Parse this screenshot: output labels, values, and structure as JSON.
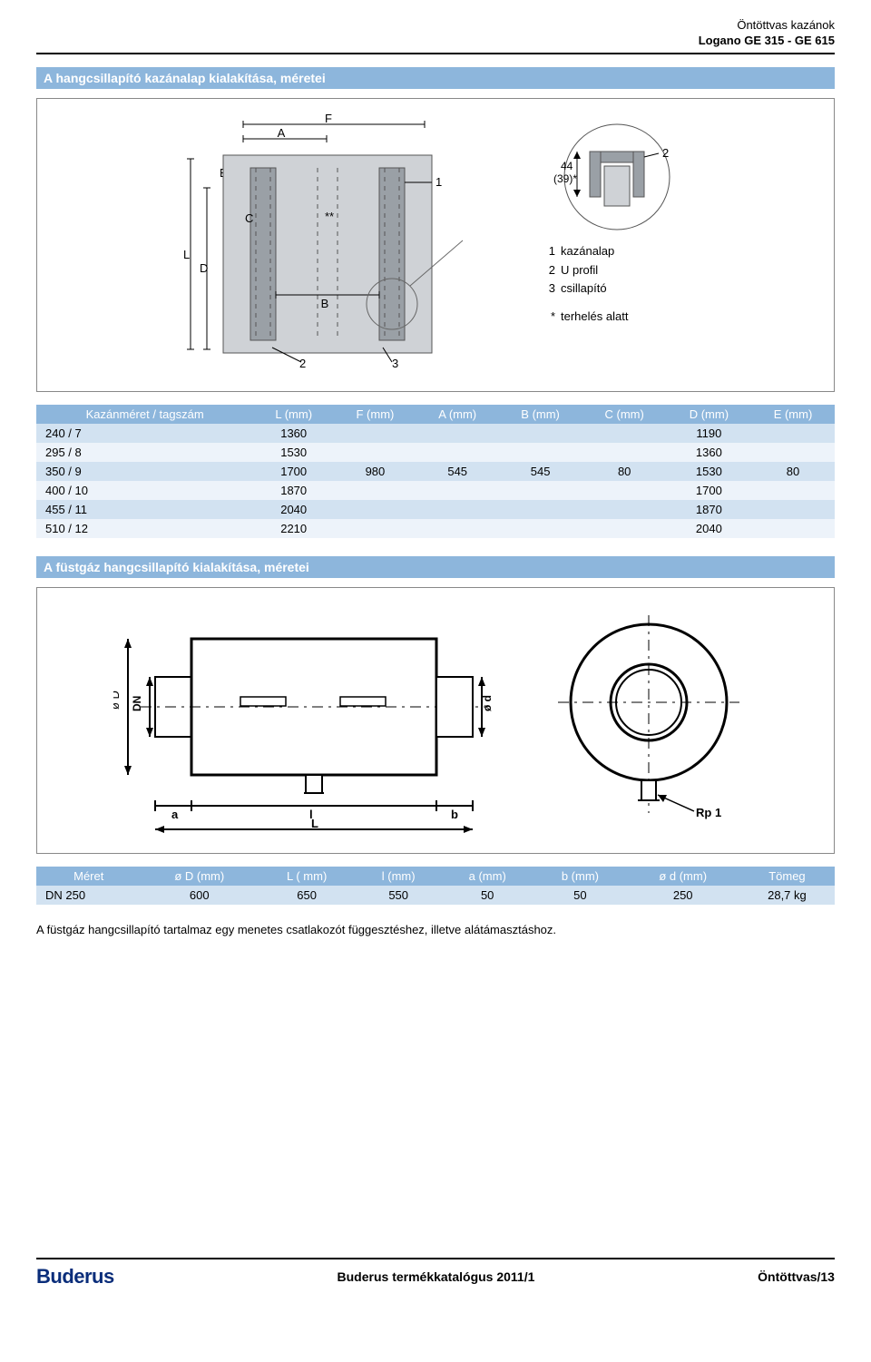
{
  "header": {
    "line1": "Öntöttvas kazánok",
    "line2": "Logano GE 315 - GE 615"
  },
  "section1": {
    "title": "A hangcsillapító kazánalap kialakítása, méretei",
    "diagram_labels": {
      "F": "F",
      "A": "A",
      "E": "E",
      "C": "C",
      "L": "L",
      "D": "D",
      "B": "B",
      "stars": "**",
      "one": "1",
      "two": "2",
      "three": "3",
      "dim": "44",
      "dim_star": "(39)*"
    },
    "legend": {
      "l1_num": "1",
      "l1_txt": "kazánalap",
      "l2_num": "2",
      "l2_txt": "U profil",
      "l3_num": "3",
      "l3_txt": "csillapító",
      "star_lbl": "*",
      "star_txt": "terhelés alatt"
    }
  },
  "table1": {
    "columns": [
      "Kazánméret / tagszám",
      "L (mm)",
      "F (mm)",
      "A (mm)",
      "B (mm)",
      "C (mm)",
      "D (mm)",
      "E (mm)"
    ],
    "rows": [
      [
        "240 / 7",
        "1360",
        "",
        "",
        "",
        "",
        "1190",
        ""
      ],
      [
        "295 / 8",
        "1530",
        "",
        "",
        "",
        "",
        "1360",
        ""
      ],
      [
        "350 / 9",
        "1700",
        "980",
        "545",
        "545",
        "80",
        "1530",
        "80"
      ],
      [
        "400 / 10",
        "1870",
        "",
        "",
        "",
        "",
        "1700",
        ""
      ],
      [
        "455 / 11",
        "2040",
        "",
        "",
        "",
        "",
        "1870",
        ""
      ],
      [
        "510 / 12",
        "2210",
        "",
        "",
        "",
        "",
        "2040",
        ""
      ]
    ]
  },
  "section2": {
    "title": "A füstgáz hangcsillapító kialakítása, méretei",
    "labels": {
      "oD": "ø D",
      "DN": "DN",
      "od": "ø d",
      "a": "a",
      "l": "l",
      "b": "b",
      "L": "L",
      "Rp1": "Rp 1"
    }
  },
  "table2": {
    "columns": [
      "Méret",
      "ø D (mm)",
      "L ( mm)",
      "l (mm)",
      "a (mm)",
      "b (mm)",
      "ø d (mm)",
      "Tömeg"
    ],
    "rows": [
      [
        "DN 250",
        "600",
        "650",
        "550",
        "50",
        "50",
        "250",
        "28,7 kg"
      ]
    ]
  },
  "note": "A füstgáz hangcsillapító tartalmaz egy menetes csatlakozót függesztéshez, illetve alátámasztáshoz.",
  "footer": {
    "logo": "Buderus",
    "center": "Buderus termékkatalógus 2011/1",
    "right": "Öntöttvas/13"
  },
  "colors": {
    "header_bg": "#8db6dc",
    "row_odd": "#d2e2f1",
    "row_even": "#edf3fa",
    "steel": "#9aa0a6",
    "steel_dark": "#6a6e72",
    "logo": "#0a2d7a"
  }
}
